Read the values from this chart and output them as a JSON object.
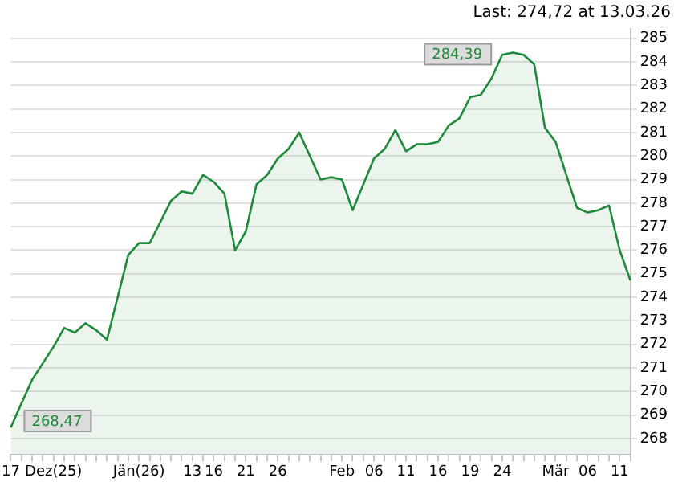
{
  "chart_data": {
    "type": "area",
    "title": "Last: 274,72 at 13.03.26",
    "categories": [
      "17",
      null,
      null,
      null,
      "Dez(25)",
      null,
      null,
      null,
      null,
      null,
      null,
      null,
      "Jän(26)",
      null,
      null,
      null,
      null,
      "13",
      null,
      "16",
      null,
      null,
      "21",
      null,
      null,
      "26",
      null,
      null,
      null,
      null,
      null,
      "Feb",
      null,
      null,
      "06",
      null,
      null,
      "11",
      null,
      null,
      "16",
      null,
      null,
      "19",
      null,
      null,
      "24",
      null,
      null,
      null,
      null,
      "Mär",
      null,
      null,
      "06",
      null,
      null,
      "11",
      null
    ],
    "series": [
      {
        "color": "#1f8a3a",
        "values": [
          268.47,
          269.5,
          270.5,
          271.2,
          271.9,
          272.7,
          272.5,
          272.9,
          272.6,
          272.2,
          274.0,
          275.8,
          276.3,
          276.3,
          277.2,
          278.1,
          278.5,
          278.4,
          279.2,
          278.9,
          278.4,
          276.0,
          276.8,
          278.8,
          279.2,
          279.9,
          280.3,
          281.0,
          280.0,
          279.0,
          279.1,
          279.0,
          277.7,
          278.8,
          279.9,
          280.3,
          281.1,
          280.2,
          280.5,
          280.5,
          280.6,
          281.3,
          281.6,
          282.5,
          282.6,
          283.3,
          284.3,
          284.39,
          284.3,
          283.9,
          281.2,
          280.6,
          279.2,
          277.8,
          277.6,
          277.7,
          277.9,
          276.0,
          274.72
        ]
      }
    ],
    "ylim": [
      267.3,
      285.4
    ],
    "yticks": [
      268,
      269,
      270,
      271,
      272,
      273,
      274,
      275,
      276,
      277,
      278,
      279,
      280,
      281,
      282,
      283,
      284,
      285
    ],
    "grid": "y",
    "annotations": [
      "284,39",
      "268,47"
    ]
  }
}
